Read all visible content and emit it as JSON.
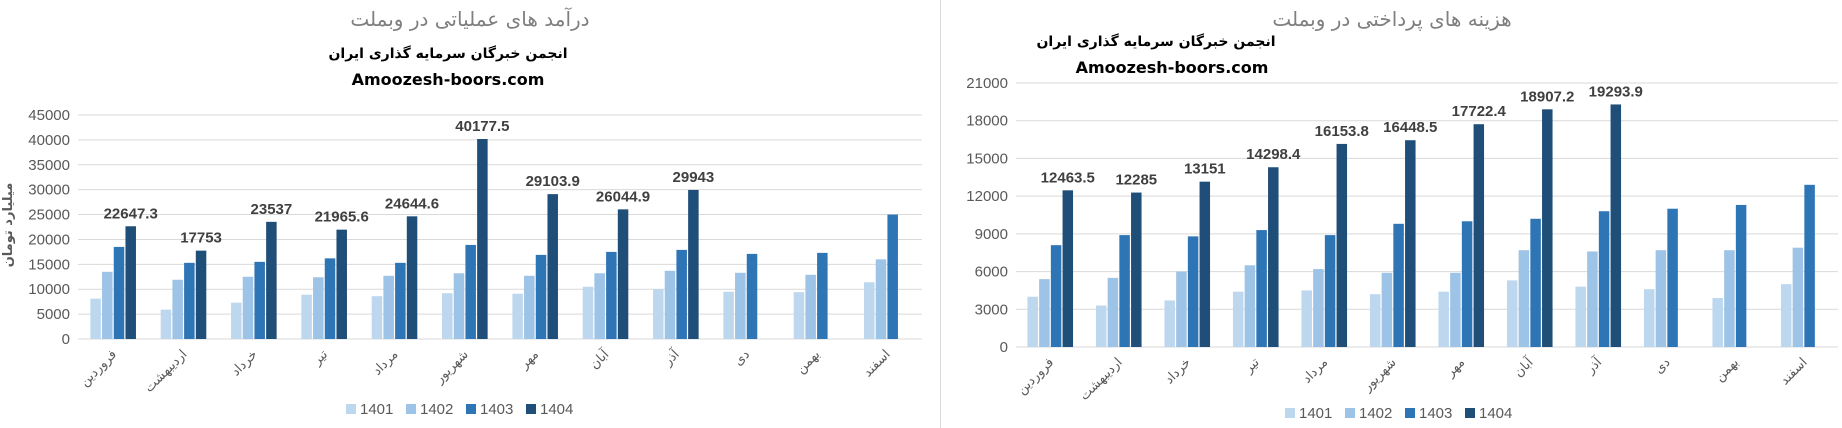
{
  "colors": [
    "#bdd7ee",
    "#9dc3e6",
    "#2e75b6",
    "#1f4e79"
  ],
  "chart_data": [
    {
      "type": "bar",
      "title": "درآمد های عملیاتی در وبملت",
      "subtitle": "انجمن خبرگان سرمایه گذاری ایران",
      "site": "Amoozesh-boors.com",
      "ylabel": "میلیارد تومان",
      "xlabel": "",
      "ylim": [
        0,
        45000
      ],
      "yticks": [
        0,
        5000,
        10000,
        15000,
        20000,
        25000,
        30000,
        35000,
        40000,
        45000
      ],
      "grid": true,
      "legend": "bottom",
      "categories": [
        "فروردین",
        "اردیبهشت",
        "خرداد",
        "تیر",
        "مرداد",
        "شهریور",
        "مهر",
        "آبان",
        "آذر",
        "دی",
        "بهمن",
        "اسفند"
      ],
      "series": [
        {
          "name": "1401",
          "values": [
            8100,
            5900,
            7300,
            8900,
            8600,
            9200,
            9100,
            10500,
            10000,
            9500,
            9400,
            11400
          ]
        },
        {
          "name": "1402",
          "values": [
            13500,
            11900,
            12500,
            12400,
            12700,
            13200,
            12700,
            13200,
            13700,
            13300,
            12900,
            16000
          ]
        },
        {
          "name": "1403",
          "values": [
            18500,
            15300,
            15500,
            16200,
            15300,
            18900,
            16900,
            17500,
            17900,
            17100,
            17300,
            25000
          ]
        },
        {
          "name": "1404",
          "values": [
            22647.3,
            17753,
            23537,
            21965.6,
            24644.6,
            40177.5,
            29103.9,
            26044.9,
            29943,
            null,
            null,
            null
          ]
        }
      ],
      "data_labels": [
        "22647.3",
        "17753",
        "23537",
        "21965.6",
        "24644.6",
        "40177.5",
        "29103.9",
        "26044.9",
        "29943"
      ]
    },
    {
      "type": "bar",
      "title": "هزینه های پرداختی در وبملت",
      "subtitle": "انجمن خبرگان سرمایه گذاری ایران",
      "site": "Amoozesh-boors.com",
      "ylabel": "",
      "xlabel": "",
      "ylim": [
        0,
        21000
      ],
      "yticks": [
        0,
        3000,
        6000,
        9000,
        12000,
        15000,
        18000,
        21000
      ],
      "grid": true,
      "legend": "bottom",
      "categories": [
        "فروردین",
        "اردیبهشت",
        "خرداد",
        "تیر",
        "مرداد",
        "شهریور",
        "مهر",
        "آبان",
        "آذر",
        "دی",
        "بهمن",
        "اسفند"
      ],
      "series": [
        {
          "name": "1401",
          "values": [
            4000,
            3300,
            3700,
            4400,
            4500,
            4200,
            4400,
            5300,
            4800,
            4600,
            3900,
            5000
          ]
        },
        {
          "name": "1402",
          "values": [
            5400,
            5500,
            6000,
            6500,
            6200,
            5900,
            5900,
            7700,
            7600,
            7700,
            7700,
            7900
          ]
        },
        {
          "name": "1403",
          "values": [
            8100,
            8900,
            8800,
            9300,
            8900,
            9800,
            10000,
            10200,
            10800,
            11000,
            11300,
            12900
          ]
        },
        {
          "name": "1404",
          "values": [
            12463.5,
            12285,
            13151,
            14298.4,
            16153.8,
            16448.5,
            17722.4,
            18907.2,
            19293.9,
            null,
            null,
            null
          ]
        }
      ],
      "data_labels": [
        "12463.5",
        "12285",
        "13151",
        "14298.4",
        "16153.8",
        "16448.5",
        "17722.4",
        "18907.2",
        "19293.9"
      ]
    }
  ]
}
